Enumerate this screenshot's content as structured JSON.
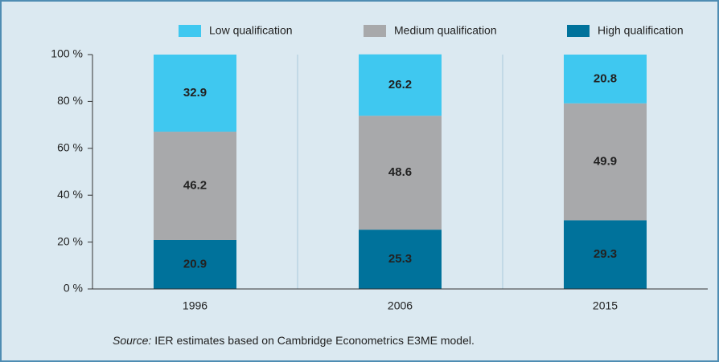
{
  "chart_data": {
    "type": "stacked_bar",
    "categories": [
      "1996",
      "2006",
      "2015"
    ],
    "series": [
      {
        "name": "High qualification",
        "color": "#00729b",
        "values": [
          20.9,
          25.3,
          29.3
        ]
      },
      {
        "name": "Medium qualification",
        "color": "#a8a9ab",
        "values": [
          46.2,
          48.6,
          49.9
        ]
      },
      {
        "name": "Low qualification",
        "color": "#3fc8f0",
        "values": [
          32.9,
          26.2,
          20.8
        ]
      }
    ],
    "ylim": [
      0,
      100
    ],
    "yticks": [
      {
        "value": 0,
        "label": "0 %"
      },
      {
        "value": 20,
        "label": "20 %"
      },
      {
        "value": 40,
        "label": "40 %"
      },
      {
        "value": 60,
        "label": "60 %"
      },
      {
        "value": 80,
        "label": "80 %"
      },
      {
        "value": 100,
        "label": "100 %"
      }
    ],
    "source_label": "Source:",
    "source_text": "IER estimates based on Cambridge Econometrics E3ME model."
  }
}
